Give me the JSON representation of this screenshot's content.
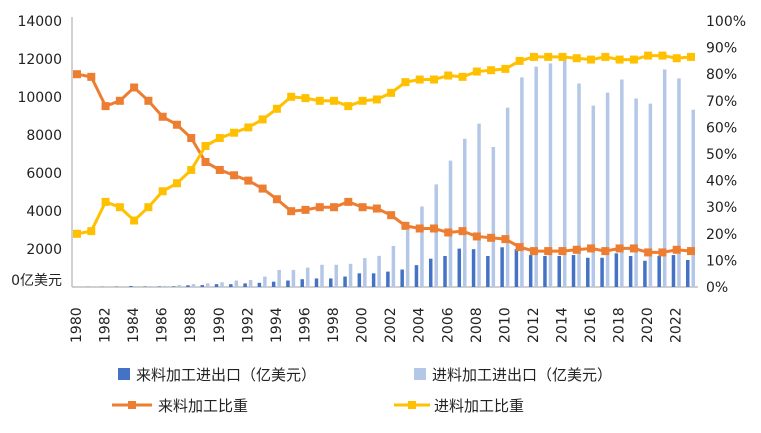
{
  "chart_data": {
    "type": "bar+line",
    "x": [
      1980,
      1981,
      1982,
      1983,
      1984,
      1985,
      1986,
      1987,
      1988,
      1989,
      1990,
      1991,
      1992,
      1993,
      1994,
      1995,
      1996,
      1997,
      1998,
      1999,
      2000,
      2001,
      2002,
      2003,
      2004,
      2005,
      2006,
      2007,
      2008,
      2009,
      2010,
      2011,
      2012,
      2013,
      2014,
      2015,
      2016,
      2017,
      2018,
      2019,
      2020,
      2021,
      2022,
      2023
    ],
    "x_tick_labels": [
      "1980",
      "1982",
      "1984",
      "1986",
      "1988",
      "1990",
      "1992",
      "1994",
      "1996",
      "1998",
      "2000",
      "2002",
      "2004",
      "2006",
      "2008",
      "2010",
      "2012",
      "2014",
      "2016",
      "2018",
      "2020",
      "2022"
    ],
    "y_left": {
      "ylim": [
        0,
        14000
      ],
      "tick_labels": [
        "0亿美元",
        "2000",
        "4000",
        "6000",
        "8000",
        "10000",
        "12000",
        "14000"
      ]
    },
    "y_right": {
      "ylim": [
        0,
        100
      ],
      "tick_labels": [
        "0%",
        "10%",
        "20%",
        "30%",
        "40%",
        "50%",
        "60%",
        "70%",
        "80%",
        "90%",
        "100%"
      ]
    },
    "series": [
      {
        "name": "来料加工进出口（亿美元）",
        "type": "bar",
        "axis": "left",
        "color": "#4472C4",
        "values": [
          5,
          8,
          10,
          15,
          50,
          20,
          25,
          30,
          90,
          100,
          150,
          150,
          190,
          220,
          280,
          340,
          410,
          450,
          450,
          550,
          720,
          720,
          810,
          920,
          1150,
          1490,
          1630,
          2020,
          1990,
          1630,
          2090,
          1990,
          1680,
          1630,
          1630,
          1680,
          1540,
          1540,
          1770,
          1630,
          1380,
          1630,
          1680,
          1420
        ]
      },
      {
        "name": "进料加工进出口（亿美元）",
        "type": "bar",
        "axis": "left",
        "color": "#B4C7E7",
        "values": [
          5,
          5,
          10,
          15,
          20,
          30,
          60,
          100,
          150,
          190,
          250,
          340,
          370,
          550,
          900,
          900,
          1020,
          1170,
          1170,
          1220,
          1520,
          1640,
          2160,
          3000,
          4240,
          5400,
          6650,
          7800,
          8600,
          7370,
          9440,
          11030,
          11600,
          11770,
          12040,
          10710,
          9550,
          10230,
          10920,
          9920,
          9650,
          11450,
          10980,
          9330
        ]
      },
      {
        "name": "来料加工比重",
        "type": "line",
        "axis": "right",
        "color": "#ED7D31",
        "values": [
          80,
          79,
          68,
          70,
          75,
          70,
          64,
          61,
          56,
          47,
          44,
          42,
          40,
          37,
          33,
          28.5,
          29,
          30,
          30,
          32,
          30,
          29.5,
          27,
          23,
          22,
          22,
          20.5,
          21,
          19,
          18.5,
          18,
          15,
          13.5,
          13.5,
          13.5,
          14,
          14.5,
          13.5,
          14.5,
          14.5,
          13,
          13,
          14,
          13.5
        ]
      },
      {
        "name": "进料加工比重",
        "type": "line",
        "axis": "right",
        "color": "#FFC000",
        "values": [
          20,
          21,
          32,
          30,
          25,
          30,
          36,
          39,
          44,
          53,
          56,
          58,
          60,
          63,
          67,
          71.5,
          71,
          70,
          70,
          68,
          70,
          70.5,
          73,
          77,
          78,
          78,
          79.5,
          79,
          81,
          81.5,
          82,
          85,
          86.5,
          86.5,
          86.5,
          86,
          85.5,
          86.5,
          85.5,
          85.5,
          87,
          87,
          86,
          86.5
        ]
      }
    ],
    "legend": "bottom",
    "grid": false
  }
}
